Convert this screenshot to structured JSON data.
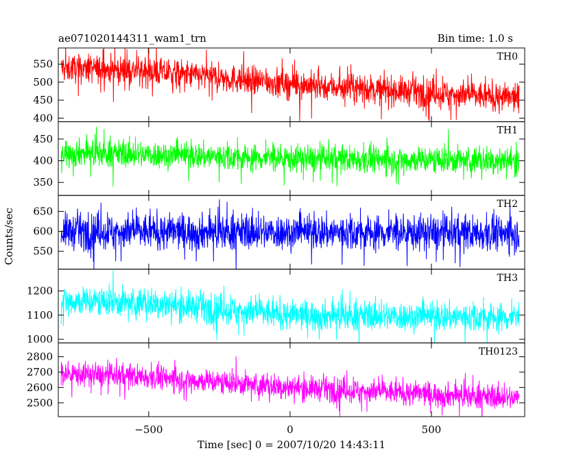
{
  "header": {
    "title": "ae071020144311_wam1_trn",
    "bin_time": "Bin time: 1.0 s"
  },
  "chart_data": {
    "type": "line",
    "xlabel": "Time [sec] 0 = 2007/10/20 14:43:11",
    "ylabel": "Counts/sec",
    "xlim": [
      -820,
      830
    ],
    "xticks": [
      -500,
      0,
      500
    ],
    "xtick_labels": [
      "−500",
      "0",
      "500"
    ],
    "x_start": -810,
    "x_end": 810,
    "bin_time_s": 1.0,
    "panels": [
      {
        "name": "TH0",
        "color": "#ff0000",
        "ylim": [
          390,
          595
        ],
        "yticks": [
          400,
          450,
          500,
          550
        ],
        "trend": [
          [
            -810,
            540
          ],
          [
            -500,
            530
          ],
          [
            0,
            495
          ],
          [
            810,
            455
          ]
        ],
        "noise_amplitude": 35,
        "spike_amplitude": 60
      },
      {
        "name": "TH1",
        "color": "#00ff00",
        "ylim": [
          320,
          490
        ],
        "yticks": [
          350,
          400,
          450
        ],
        "trend": [
          [
            -810,
            420
          ],
          [
            0,
            405
          ],
          [
            810,
            400
          ]
        ],
        "noise_amplitude": 28,
        "spike_amplitude": 45
      },
      {
        "name": "TH2",
        "color": "#0000ff",
        "ylim": [
          505,
          690
        ],
        "yticks": [
          550,
          600,
          650
        ],
        "trend": [
          [
            -810,
            600
          ],
          [
            0,
            598
          ],
          [
            810,
            595
          ]
        ],
        "noise_amplitude": 40,
        "spike_amplitude": 60
      },
      {
        "name": "TH3",
        "color": "#00ffff",
        "ylim": [
          985,
          1290
        ],
        "yticks": [
          1000,
          1100,
          1200
        ],
        "trend": [
          [
            -810,
            1160
          ],
          [
            -500,
            1150
          ],
          [
            0,
            1100
          ],
          [
            810,
            1090
          ]
        ],
        "noise_amplitude": 55,
        "spike_amplitude": 80
      },
      {
        "name": "TH0123",
        "color": "#ff00ff",
        "ylim": [
          2410,
          2890
        ],
        "yticks": [
          2500,
          2600,
          2700,
          2800
        ],
        "trend": [
          [
            -810,
            2690
          ],
          [
            -500,
            2670
          ],
          [
            0,
            2600
          ],
          [
            810,
            2530
          ]
        ],
        "noise_amplitude": 70,
        "spike_amplitude": 110
      }
    ]
  }
}
